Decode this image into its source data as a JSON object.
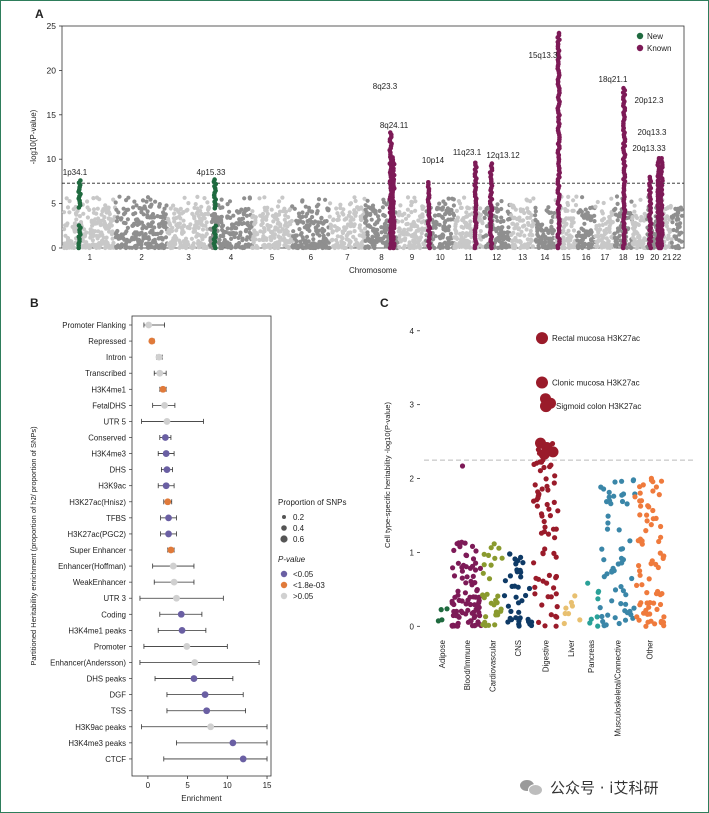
{
  "panels": {
    "a": "A",
    "b": "B",
    "c": "C"
  },
  "watermark": "公众号 · i艾科研",
  "colors": {
    "new": "#1f6a3f",
    "known": "#7d1a57",
    "chrom_light": "#c8c8c8",
    "chrom_dark": "#8f8f8f",
    "sig": "#6a5fa3",
    "nominal": "#e07a3a",
    "ns": "#d0d0d0",
    "c_adipose": "#1f6a3f",
    "c_blood": "#7d1a57",
    "c_cardio": "#8a9a2e",
    "c_cns": "#0e3a66",
    "c_digestive": "#9a1b2a",
    "c_liver": "#e8c070",
    "c_pancreas": "#2aa198",
    "c_musculo": "#3a86a8",
    "c_other": "#ef7a3c"
  },
  "chart_data": [
    {
      "type": "scatter",
      "subtype": "manhattan",
      "title": "",
      "xlabel": "Chromosome",
      "ylabel": "-log10(P-value)",
      "ylim": [
        0,
        25
      ],
      "yticks": [
        0,
        5,
        10,
        15,
        20,
        25
      ],
      "threshold": 7.3,
      "chromosomes": [
        "1",
        "2",
        "3",
        "4",
        "5",
        "6",
        "7",
        "8",
        "9",
        "10",
        "11",
        "12",
        "13",
        "14",
        "15",
        "16",
        "17",
        "18",
        "19",
        "20",
        "21",
        "22"
      ],
      "legend": [
        {
          "label": "New",
          "color": "#1f6a3f"
        },
        {
          "label": "Known",
          "color": "#7d1a57"
        }
      ],
      "loci": [
        {
          "label": "1p34.1",
          "chrom": 1,
          "pos": 0.3,
          "peak": 7.6,
          "status": "new"
        },
        {
          "label": "4p15.33",
          "chrom": 4,
          "pos": 0.12,
          "peak": 7.7,
          "status": "new"
        },
        {
          "label": "8q23.3",
          "chrom": 8,
          "pos": 0.78,
          "peak": 13.0,
          "status": "known"
        },
        {
          "label": "8q24.11",
          "chrom": 8,
          "pos": 0.86,
          "peak": 10.2,
          "status": "known"
        },
        {
          "label": "10p14",
          "chrom": 10,
          "pos": 0.1,
          "peak": 7.4,
          "status": "known"
        },
        {
          "label": "11q23.1",
          "chrom": 11,
          "pos": 0.75,
          "peak": 9.6,
          "status": "known"
        },
        {
          "label": "12q13.12",
          "chrom": 12,
          "pos": 0.3,
          "peak": 9.5,
          "status": "known"
        },
        {
          "label": "15q13.3",
          "chrom": 15,
          "pos": 0.15,
          "peak": 24.2,
          "status": "known"
        },
        {
          "label": "18q21.1",
          "chrom": 18,
          "pos": 0.55,
          "peak": 18.0,
          "status": "known"
        },
        {
          "label": "20p12.3",
          "chrom": 20,
          "pos": 0.2,
          "peak": 8.0,
          "status": "known"
        },
        {
          "label": "20q13.3",
          "chrom": 20,
          "pos": 0.75,
          "peak": 10.1,
          "status": "known"
        },
        {
          "label": "20q13.33",
          "chrom": 20,
          "pos": 0.95,
          "peak": 10.1,
          "status": "known"
        }
      ]
    },
    {
      "type": "scatter",
      "subtype": "forest",
      "xlabel": "Enrichment",
      "ylabel": "Partitioned Heritability enrichment (proportion of h2/ proportion of SNPs)",
      "xlim": [
        -2,
        15.5
      ],
      "xticks": [
        0,
        5,
        10,
        15
      ],
      "size_legend_title": "Proportion of SNPs",
      "size_legend": [
        "0.2",
        "0.4",
        "0.6"
      ],
      "color_legend_title": "P-value",
      "color_legend": [
        {
          "label": "<0.05",
          "key": "sig"
        },
        {
          "label": "<1.8e-03",
          "key": "nominal"
        },
        {
          "label": ">0.05",
          "key": "ns"
        }
      ],
      "rows": [
        {
          "name": "Promoter Flanking",
          "est": 0.1,
          "lo": -0.5,
          "hi": 2.1,
          "p": "ns"
        },
        {
          "name": "Repressed",
          "est": 0.5,
          "lo": 0.3,
          "hi": 0.8,
          "p": "nominal"
        },
        {
          "name": "Intron",
          "est": 1.4,
          "lo": 1.1,
          "hi": 1.8,
          "p": "ns"
        },
        {
          "name": "Transcribed",
          "est": 1.5,
          "lo": 0.8,
          "hi": 2.3,
          "p": "ns"
        },
        {
          "name": "H3K4me1",
          "est": 1.9,
          "lo": 1.5,
          "hi": 2.3,
          "p": "nominal"
        },
        {
          "name": "FetalDHS",
          "est": 2.1,
          "lo": 0.6,
          "hi": 3.4,
          "p": "ns"
        },
        {
          "name": "UTR 5",
          "est": 2.4,
          "lo": -0.8,
          "hi": 7.0,
          "p": "ns"
        },
        {
          "name": "Conserved",
          "est": 2.2,
          "lo": 1.5,
          "hi": 2.9,
          "p": "sig"
        },
        {
          "name": "H3K4me3",
          "est": 2.3,
          "lo": 1.3,
          "hi": 3.3,
          "p": "sig"
        },
        {
          "name": "DHS",
          "est": 2.4,
          "lo": 1.7,
          "hi": 3.1,
          "p": "sig"
        },
        {
          "name": "H3K9ac",
          "est": 2.3,
          "lo": 1.3,
          "hi": 3.3,
          "p": "sig"
        },
        {
          "name": "H3K27ac(Hnisz)",
          "est": 2.5,
          "lo": 2.0,
          "hi": 3.0,
          "p": "nominal"
        },
        {
          "name": "TFBS",
          "est": 2.6,
          "lo": 1.6,
          "hi": 3.6,
          "p": "sig"
        },
        {
          "name": "H3K27ac(PGC2)",
          "est": 2.6,
          "lo": 1.6,
          "hi": 3.6,
          "p": "sig"
        },
        {
          "name": "Super Enhancer",
          "est": 2.9,
          "lo": 2.5,
          "hi": 3.3,
          "p": "nominal"
        },
        {
          "name": "Enhancer(Hoffman)",
          "est": 3.2,
          "lo": 0.6,
          "hi": 5.8,
          "p": "ns"
        },
        {
          "name": "WeakEnhancer",
          "est": 3.3,
          "lo": 0.8,
          "hi": 5.8,
          "p": "ns"
        },
        {
          "name": "UTR 3",
          "est": 3.6,
          "lo": -1.0,
          "hi": 9.5,
          "p": "ns"
        },
        {
          "name": "Coding",
          "est": 4.2,
          "lo": 1.5,
          "hi": 6.8,
          "p": "sig"
        },
        {
          "name": "H3K4me1 peaks",
          "est": 4.3,
          "lo": 1.3,
          "hi": 7.3,
          "p": "sig"
        },
        {
          "name": "Promoter",
          "est": 4.9,
          "lo": -0.5,
          "hi": 10.0,
          "p": "ns"
        },
        {
          "name": "Enhancer(Andersson)",
          "est": 5.9,
          "lo": -1.0,
          "hi": 14.0,
          "p": "ns"
        },
        {
          "name": "DHS peaks",
          "est": 5.8,
          "lo": 0.9,
          "hi": 10.7,
          "p": "sig"
        },
        {
          "name": "DGF",
          "est": 7.2,
          "lo": 2.4,
          "hi": 12.0,
          "p": "sig"
        },
        {
          "name": "TSS",
          "est": 7.4,
          "lo": 2.4,
          "hi": 12.3,
          "p": "sig"
        },
        {
          "name": "H3K9ac peaks",
          "est": 7.9,
          "lo": -0.8,
          "hi": 15.0,
          "p": "ns"
        },
        {
          "name": "H3K4me3 peaks",
          "est": 10.7,
          "lo": 3.6,
          "hi": 15.0,
          "p": "sig"
        },
        {
          "name": "CTCF",
          "est": 12.0,
          "lo": 2.0,
          "hi": 15.0,
          "p": "sig"
        }
      ]
    },
    {
      "type": "scatter",
      "subtype": "strip",
      "ylabel": "Cell type-specific heritability -log10(P-value)",
      "ylim": [
        -0.05,
        4.2
      ],
      "yticks": [
        0,
        1,
        2,
        3,
        4
      ],
      "threshold": 2.25,
      "categories": [
        {
          "name": "Adipose",
          "n": 4,
          "max": 0.45,
          "color": "c_adipose"
        },
        {
          "name": "Blood/Immune",
          "n": 90,
          "max": 1.15,
          "color": "c_blood"
        },
        {
          "name": "Cardiovascular",
          "n": 30,
          "max": 1.25,
          "color": "c_cardio"
        },
        {
          "name": "CNS",
          "n": 40,
          "max": 1.0,
          "color": "c_cns"
        },
        {
          "name": "Digestive",
          "n": 75,
          "max": 2.5,
          "color": "c_digestive"
        },
        {
          "name": "Liver",
          "n": 8,
          "max": 0.45,
          "color": "c_liver"
        },
        {
          "name": "Pancreas",
          "n": 8,
          "max": 0.9,
          "color": "c_pancreas"
        },
        {
          "name": "Musculoskeletal/Connective",
          "n": 60,
          "max": 2.0,
          "color": "c_musculo"
        },
        {
          "name": "Other",
          "n": 75,
          "max": 2.05,
          "color": "c_other"
        }
      ],
      "highlights": [
        {
          "label": "Rectal mucosa H3K27ac",
          "category": "Digestive",
          "value": 3.9
        },
        {
          "label": "Clonic mucosa H3K27ac",
          "category": "Digestive",
          "value": 3.3
        },
        {
          "label": "Sigmoid colon H3K27ac",
          "category": "Digestive",
          "value": 2.98
        }
      ],
      "extra_points": [
        {
          "category": "Blood/Immune",
          "value": 2.17
        },
        {
          "category": "Digestive",
          "value": 3.08
        },
        {
          "category": "Digestive",
          "value": 3.02
        },
        {
          "category": "Digestive",
          "value": 2.48
        },
        {
          "category": "Digestive",
          "value": 2.42
        },
        {
          "category": "Digestive",
          "value": 2.36
        },
        {
          "category": "Digestive",
          "value": 2.33
        }
      ]
    }
  ]
}
